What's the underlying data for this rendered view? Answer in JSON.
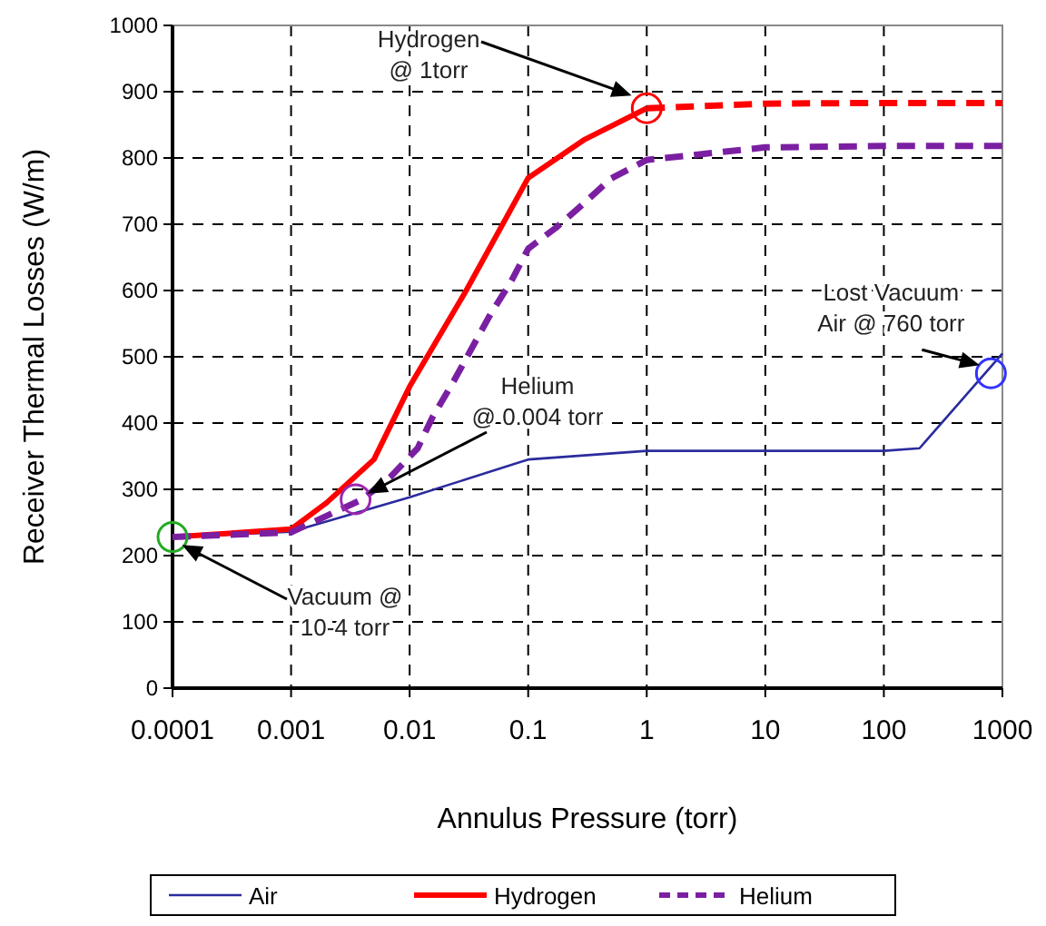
{
  "chart_data": {
    "type": "line",
    "xlabel": "Annulus Pressure (torr)",
    "ylabel": "Receiver Thermal Losses (W/m)",
    "log": "x",
    "xlim": [
      0.0001,
      1000
    ],
    "xticks": [
      0.0001,
      0.001,
      0.01,
      0.1,
      1,
      10,
      100,
      1000
    ],
    "ylim": [
      0,
      1000
    ],
    "yticks": [
      0,
      100,
      200,
      300,
      400,
      500,
      600,
      700,
      800,
      900,
      1000
    ],
    "grid": true,
    "legend": "bottom",
    "series": [
      {
        "name": "Air",
        "color": "#2b2b9e",
        "line_style": "solid",
        "x": [
          0.0001,
          0.001,
          0.01,
          0.1,
          1,
          10,
          100,
          200,
          1000
        ],
        "values": [
          228,
          236,
          288,
          345,
          358,
          358,
          358,
          362,
          505
        ]
      },
      {
        "name": "Hydrogen",
        "color": "#ff0000",
        "line_style": "solid",
        "x": [
          0.0001,
          0.001,
          0.002,
          0.005,
          0.01,
          0.03,
          0.1,
          0.3,
          1
        ],
        "values": [
          228,
          240,
          280,
          345,
          455,
          600,
          770,
          828,
          875
        ]
      },
      {
        "color": "#ff0000",
        "line_style": "dashed",
        "x": [
          1,
          10,
          100,
          1000
        ],
        "values": [
          875,
          882,
          883,
          883
        ]
      },
      {
        "name": "Helium",
        "color": "#7b1fa2",
        "line_style": "dashed",
        "x": [
          0.0001,
          0.001,
          0.004,
          0.007,
          0.0117,
          0.0155,
          0.0235,
          0.048,
          0.072,
          0.1,
          0.175,
          0.28,
          0.5,
          1,
          10,
          100,
          1000
        ],
        "values": [
          228,
          235,
          285,
          320,
          362,
          408,
          463,
          564,
          614,
          663,
          696,
          728,
          769,
          797,
          816,
          818,
          818
        ]
      },
      {
        "type": "scatter",
        "marker": "circle",
        "color": "#22aa22",
        "x": [
          0.0001
        ],
        "values": [
          228
        ]
      },
      {
        "type": "scatter",
        "marker": "circle",
        "color": "#ff0000",
        "x": [
          1
        ],
        "values": [
          875
        ]
      },
      {
        "type": "scatter",
        "marker": "circle",
        "color": "#9c27b0",
        "x": [
          0.0035
        ],
        "values": [
          285
        ]
      },
      {
        "type": "scatter",
        "marker": "circle",
        "color": "#3333ff",
        "x": [
          800
        ],
        "values": [
          475
        ]
      }
    ],
    "annotations": [
      "Hydrogen\n@ 1torr",
      "Helium\n@ 0.004 torr",
      "Vacuum @\n10-4 torr",
      {
        "text": "Lost Vacuum\nAir @ 760 torr",
        "x": 800,
        "y": 475
      }
    ]
  }
}
